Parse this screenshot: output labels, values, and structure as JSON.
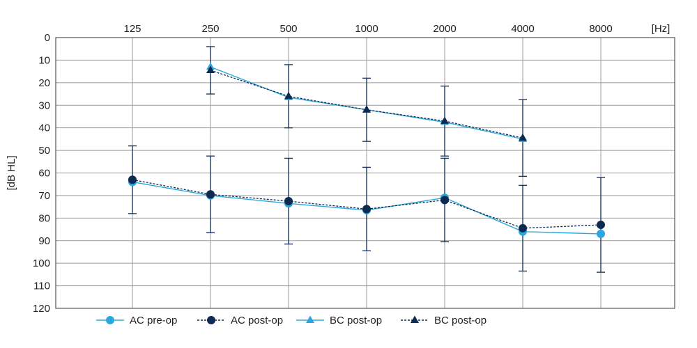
{
  "chart_data": {
    "type": "line",
    "title": "",
    "xlabel": "",
    "xunit": "[Hz]",
    "ylabel": "[dB HL]",
    "categories": [
      "125",
      "250",
      "500",
      "1000",
      "2000",
      "4000",
      "8000"
    ],
    "ylim": [
      0,
      120
    ],
    "yticks": [
      0,
      10,
      20,
      30,
      40,
      50,
      60,
      70,
      80,
      90,
      100,
      110,
      120
    ],
    "y_inverted": true,
    "grid": true,
    "legend_position": "bottom",
    "series": [
      {
        "name": "AC pre-op",
        "marker": "circle",
        "line": "solid",
        "color": "#29a8e0",
        "values": [
          64,
          70,
          73.5,
          76.5,
          71,
          86,
          87
        ]
      },
      {
        "name": "AC post-op",
        "marker": "circle",
        "line": "dotted",
        "color": "#0d2a52",
        "values": [
          63,
          69.5,
          72.5,
          76,
          72,
          84.5,
          83
        ],
        "error": [
          15,
          17,
          19,
          18.5,
          18.5,
          19,
          21
        ]
      },
      {
        "name": "BC post-op",
        "marker": "triangle",
        "line": "solid",
        "color": "#29a8e0",
        "values": [
          null,
          13,
          26.5,
          32,
          37.5,
          45,
          null
        ]
      },
      {
        "name": "BC post-op",
        "marker": "triangle",
        "line": "dotted",
        "color": "#0d2a52",
        "values": [
          null,
          14.5,
          26,
          32,
          37,
          44.5,
          null
        ],
        "error": [
          null,
          10.5,
          14,
          14,
          15.5,
          17,
          null
        ]
      }
    ]
  }
}
